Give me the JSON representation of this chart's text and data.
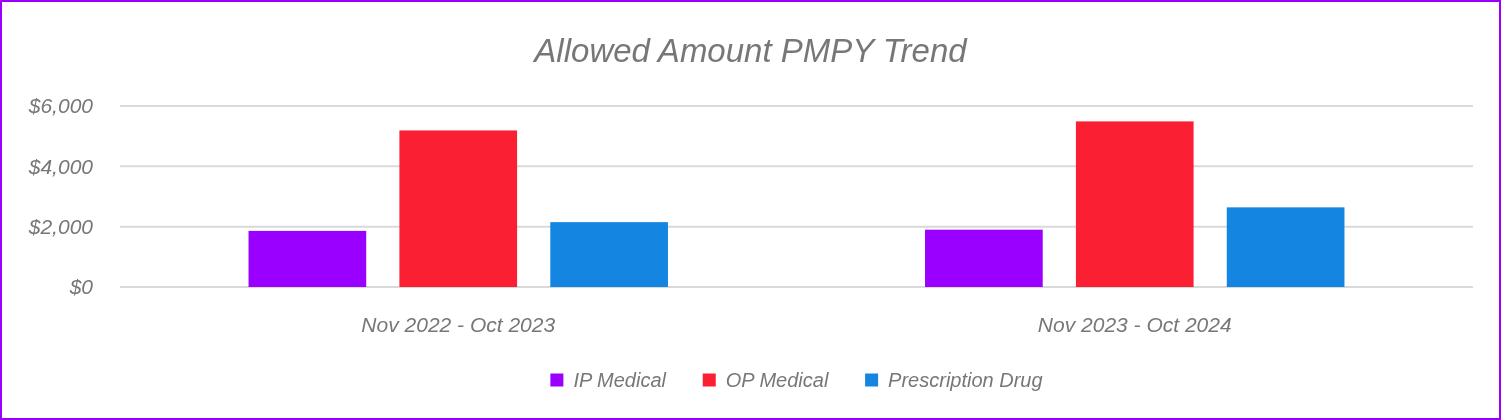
{
  "chart_data": {
    "type": "bar",
    "title": "Allowed Amount PMPY Trend",
    "categories": [
      "Nov 2022 - Oct 2023",
      "Nov 2023 - Oct 2024"
    ],
    "series": [
      {
        "name": "IP Medical",
        "color": "#9900ff",
        "values": [
          1860,
          1900
        ]
      },
      {
        "name": "OP Medical",
        "color": "#fa1f33",
        "values": [
          5190,
          5490
        ]
      },
      {
        "name": "Prescription Drug",
        "color": "#1485e0",
        "values": [
          2150,
          2640
        ]
      }
    ],
    "ylim": [
      0,
      6000
    ],
    "yticks": [
      {
        "value": 0,
        "label": "$0"
      },
      {
        "value": 2000,
        "label": "$2,000"
      },
      {
        "value": 4000,
        "label": "$4,000"
      },
      {
        "value": 6000,
        "label": "$6,000"
      }
    ],
    "grid": "y",
    "legend": "bottom"
  }
}
